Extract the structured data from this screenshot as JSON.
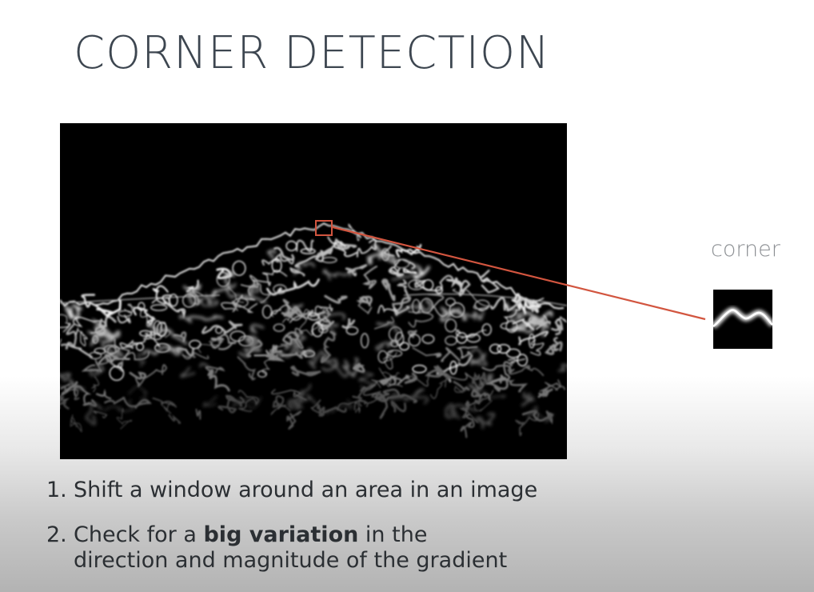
{
  "slide": {
    "title": "CORNER DETECTION",
    "corner_label": "corner",
    "steps": [
      {
        "number": "1.",
        "text": "Shift a window around an area in an image"
      },
      {
        "number": "2.",
        "text_before": "Check for a ",
        "bold": "big variation",
        "text_after": " in the",
        "continuation": "direction and magnitude of the gradient"
      }
    ]
  },
  "colors": {
    "title": "#3d4650",
    "highlight": "#d2553f",
    "label": "#8c8f93"
  }
}
